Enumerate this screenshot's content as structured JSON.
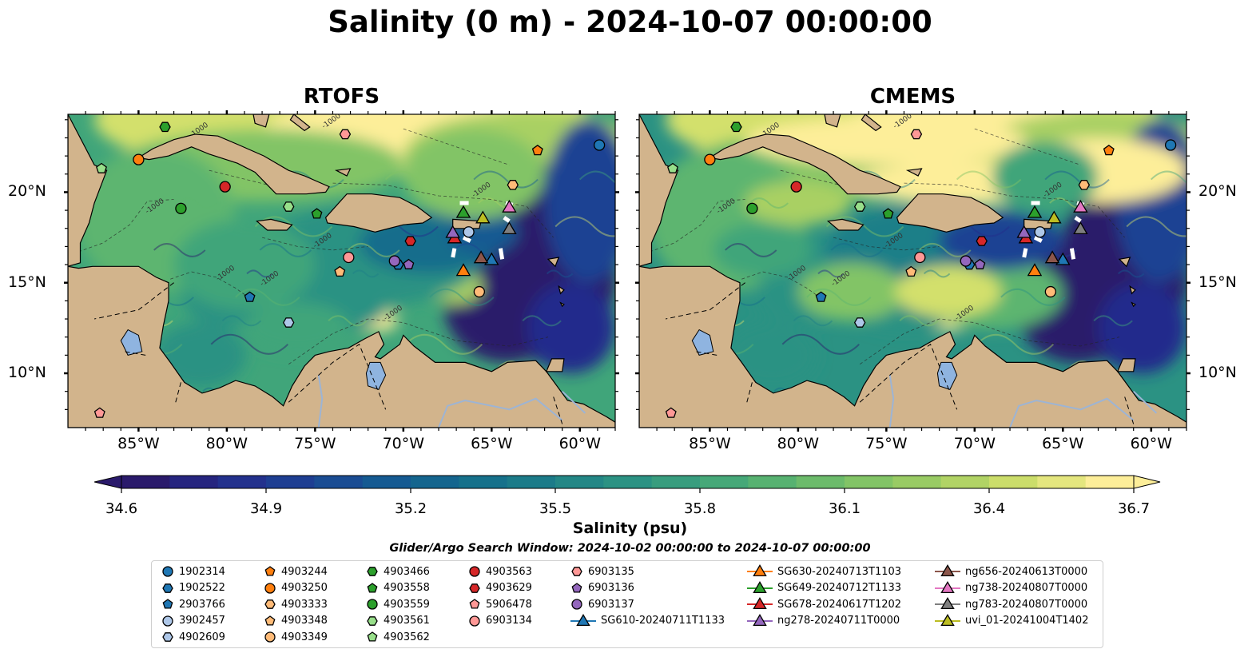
{
  "title": "Salinity (0 m) - 2024-10-07 00:00:00",
  "panels": [
    {
      "title": "RTOFS"
    },
    {
      "title": "CMEMS"
    }
  ],
  "axes": {
    "lon_ticks": [
      "85°W",
      "80°W",
      "75°W",
      "70°W",
      "65°W",
      "60°W"
    ],
    "lat_ticks": [
      "20°N",
      "15°N",
      "10°N"
    ]
  },
  "colorbar": {
    "label": "Salinity (psu)",
    "min": 34.6,
    "max": 36.7,
    "ticks": [
      "34.6",
      "34.9",
      "35.2",
      "35.5",
      "35.8",
      "36.1",
      "36.4",
      "36.7"
    ],
    "colormap": "haline",
    "colors": [
      "#2a1a6b",
      "#242c8c",
      "#1d4393",
      "#155a92",
      "#146d8c",
      "#1d7f88",
      "#2b9283",
      "#40a57a",
      "#5db56f",
      "#82c466",
      "#a9d063",
      "#d3e06c",
      "#fdee99"
    ]
  },
  "search_window": "Glider/Argo Search Window: 2024-10-02 00:00:00 to 2024-10-07 00:00:00",
  "land_color": "#d2b48c",
  "lake_color": "#8fb4e0",
  "contour_label": "-1000",
  "legend": {
    "columns": [
      [
        {
          "label": "1902314",
          "marker": "circle",
          "color": "#1f77b4"
        },
        {
          "label": "1902522",
          "marker": "hexagon",
          "color": "#1f77b4"
        },
        {
          "label": "2903766",
          "marker": "pentagon",
          "color": "#1f77b4"
        },
        {
          "label": "3902457",
          "marker": "circle",
          "color": "#aec7e8"
        },
        {
          "label": "4902609",
          "marker": "hexagon",
          "color": "#aec7e8"
        }
      ],
      [
        {
          "label": "4903244",
          "marker": "pentagon",
          "color": "#ff7f0e"
        },
        {
          "label": "4903250",
          "marker": "circle",
          "color": "#ff7f0e"
        },
        {
          "label": "4903333",
          "marker": "hexagon",
          "color": "#ffbb78"
        },
        {
          "label": "4903348",
          "marker": "pentagon",
          "color": "#ffbb78"
        },
        {
          "label": "4903349",
          "marker": "circle",
          "color": "#ffbb78"
        }
      ],
      [
        {
          "label": "4903466",
          "marker": "hexagon",
          "color": "#2ca02c"
        },
        {
          "label": "4903558",
          "marker": "pentagon",
          "color": "#2ca02c"
        },
        {
          "label": "4903559",
          "marker": "circle",
          "color": "#2ca02c"
        },
        {
          "label": "4903561",
          "marker": "hexagon",
          "color": "#98df8a"
        },
        {
          "label": "4903562",
          "marker": "pentagon",
          "color": "#98df8a"
        }
      ],
      [
        {
          "label": "4903563",
          "marker": "circle",
          "color": "#d62728"
        },
        {
          "label": "4903629",
          "marker": "hexagon",
          "color": "#d62728"
        },
        {
          "label": "5906478",
          "marker": "pentagon",
          "color": "#ff9896"
        },
        {
          "label": "6903134",
          "marker": "circle",
          "color": "#ff9896"
        }
      ],
      [
        {
          "label": "6903135",
          "marker": "hexagon",
          "color": "#ff9896"
        },
        {
          "label": "6903136",
          "marker": "pentagon",
          "color": "#9467bd"
        },
        {
          "label": "6903137",
          "marker": "circle",
          "color": "#9467bd"
        },
        {
          "label": "SG610-20240711T1133",
          "marker": "triangle-line",
          "color": "#1f77b4"
        }
      ],
      [
        {
          "label": "SG630-20240713T1103",
          "marker": "triangle-line",
          "color": "#ff7f0e"
        },
        {
          "label": "SG649-20240712T1133",
          "marker": "triangle-line",
          "color": "#2ca02c"
        },
        {
          "label": "SG678-20240617T1202",
          "marker": "triangle-line",
          "color": "#d62728"
        },
        {
          "label": "ng278-20240711T0000",
          "marker": "triangle-line",
          "color": "#9467bd"
        }
      ],
      [
        {
          "label": "ng656-20240613T0000",
          "marker": "triangle-line",
          "color": "#8c564b"
        },
        {
          "label": "ng738-20240807T0000",
          "marker": "triangle-line",
          "color": "#e377c2"
        },
        {
          "label": "ng783-20240807T0000",
          "marker": "triangle-line",
          "color": "#7f7f7f"
        },
        {
          "label": "uvi_01-20241004T1402",
          "marker": "triangle-line",
          "color": "#bcbd22"
        }
      ]
    ]
  },
  "floats": [
    {
      "id": "1902314",
      "lon": -58.9,
      "lat": 22.6
    },
    {
      "id": "1902522",
      "lon": -70.3,
      "lat": 16.0
    },
    {
      "id": "2903766",
      "lon": -78.7,
      "lat": 14.2
    },
    {
      "id": "3902457",
      "lon": -66.3,
      "lat": 17.8
    },
    {
      "id": "4902609",
      "lon": -76.5,
      "lat": 12.8
    },
    {
      "id": "4903244",
      "lon": -62.4,
      "lat": 22.3
    },
    {
      "id": "4903250",
      "lon": -85.0,
      "lat": 21.8
    },
    {
      "id": "4903333",
      "lon": -63.8,
      "lat": 20.4
    },
    {
      "id": "4903348",
      "lon": -73.6,
      "lat": 15.6
    },
    {
      "id": "4903349",
      "lon": -65.7,
      "lat": 14.5
    },
    {
      "id": "4903466",
      "lon": -83.5,
      "lat": 23.6
    },
    {
      "id": "4903558",
      "lon": -74.9,
      "lat": 18.8
    },
    {
      "id": "4903559",
      "lon": -82.6,
      "lat": 19.1
    },
    {
      "id": "4903561",
      "lon": -76.5,
      "lat": 19.2
    },
    {
      "id": "4903562",
      "lon": -87.1,
      "lat": 21.3
    },
    {
      "id": "4903563",
      "lon": -80.1,
      "lat": 20.3
    },
    {
      "id": "4903629",
      "lon": -69.6,
      "lat": 17.3
    },
    {
      "id": "5906478",
      "lon": -87.2,
      "lat": 7.8
    },
    {
      "id": "6903134",
      "lon": -73.1,
      "lat": 16.4
    },
    {
      "id": "6903135",
      "lon": -73.3,
      "lat": 23.2
    },
    {
      "id": "6903136",
      "lon": -69.7,
      "lat": 16.0
    },
    {
      "id": "6903137",
      "lon": -70.5,
      "lat": 16.2
    }
  ],
  "gliders": [
    {
      "id": "SG610-20240711T1133",
      "lon": -65.0,
      "lat": 16.3
    },
    {
      "id": "SG630-20240713T1103",
      "lon": -66.6,
      "lat": 15.7
    },
    {
      "id": "SG649-20240712T1133",
      "lon": -66.6,
      "lat": 18.9
    },
    {
      "id": "SG678-20240617T1202",
      "lon": -67.1,
      "lat": 17.5
    },
    {
      "id": "ng278-20240711T0000",
      "lon": -67.2,
      "lat": 17.8
    },
    {
      "id": "ng656-20240613T0000",
      "lon": -65.6,
      "lat": 16.4
    },
    {
      "id": "ng738-20240807T0000",
      "lon": -64.0,
      "lat": 19.2
    },
    {
      "id": "ng783-20240807T0000",
      "lon": -64.0,
      "lat": 18.0
    },
    {
      "id": "uvi_01-20241004T1402",
      "lon": -65.5,
      "lat": 18.6
    }
  ]
}
